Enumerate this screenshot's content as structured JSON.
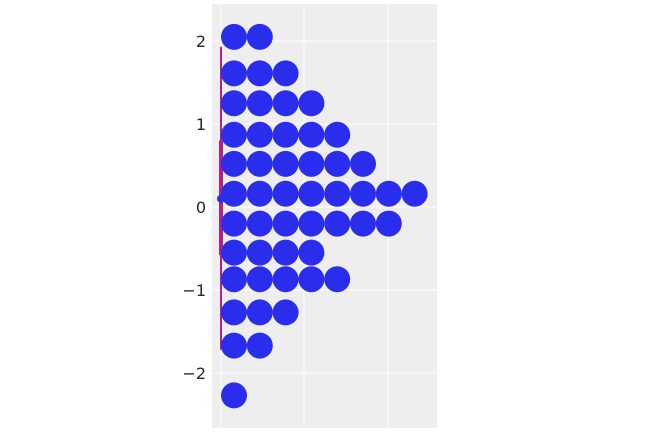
{
  "chart_data": {
    "type": "dotplot",
    "ylim": [
      -2.6,
      2.5
    ],
    "yticks": [
      2,
      1,
      0,
      -1,
      -2
    ],
    "ytick_labels": [
      "2",
      "1",
      "0",
      "−1",
      "−2"
    ],
    "grid": true,
    "colors": {
      "dots": "#2a2eec",
      "interval": "#b2208a",
      "background": "#eeeeee",
      "grid": "#ffffff"
    },
    "point_estimate": 0.1,
    "interval_thick": [
      -0.58,
      0.8
    ],
    "interval_thin": [
      -1.72,
      1.93
    ],
    "rows": [
      {
        "y": 2.05,
        "count": 2
      },
      {
        "y": 1.61,
        "count": 3
      },
      {
        "y": 1.25,
        "count": 4
      },
      {
        "y": 0.87,
        "count": 5
      },
      {
        "y": 0.52,
        "count": 6
      },
      {
        "y": 0.16,
        "count": 8
      },
      {
        "y": -0.2,
        "count": 7
      },
      {
        "y": -0.55,
        "count": 4
      },
      {
        "y": -0.87,
        "count": 5
      },
      {
        "y": -1.27,
        "count": 3
      },
      {
        "y": -1.67,
        "count": 2
      },
      {
        "y": -2.27,
        "count": 1
      }
    ]
  }
}
